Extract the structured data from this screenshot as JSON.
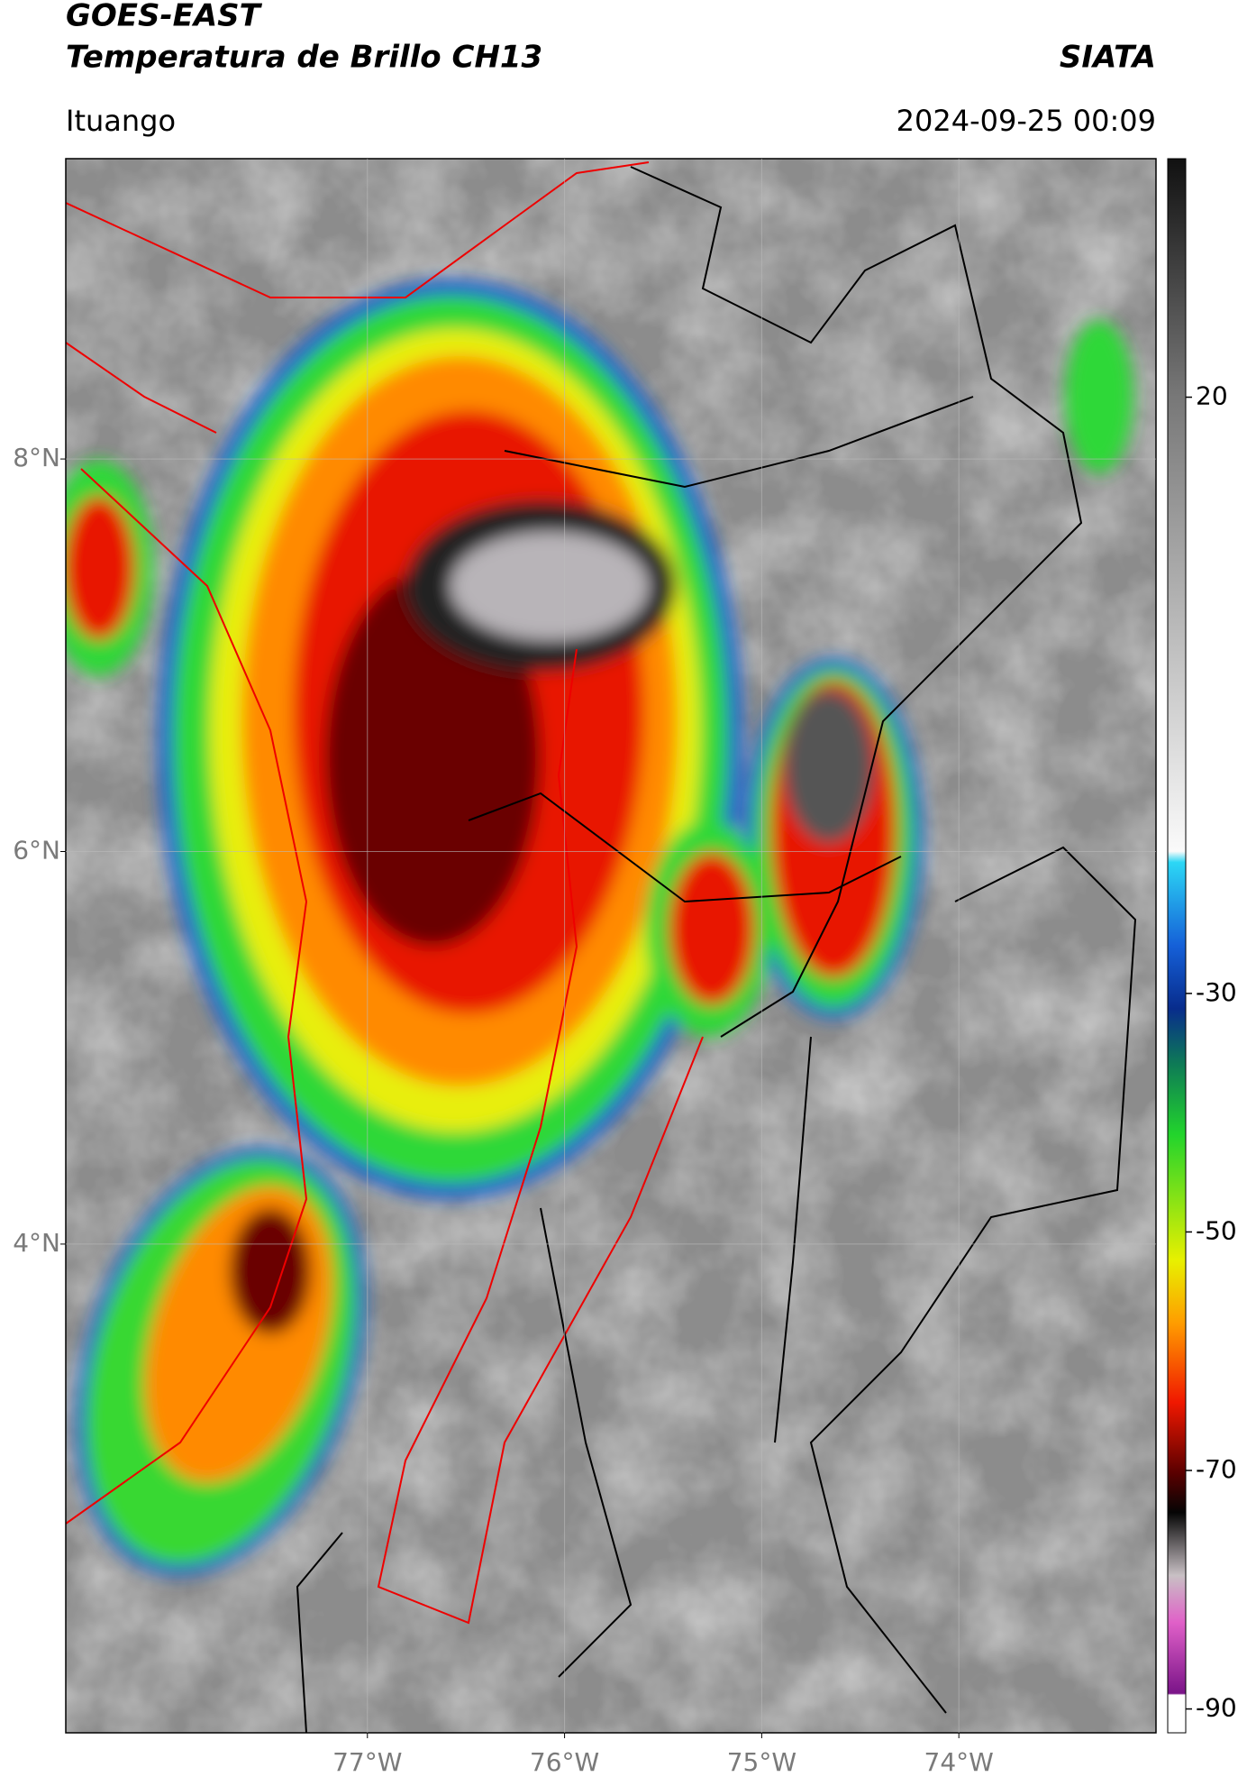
{
  "chart_data": {
    "type": "map",
    "title": "GOES-EAST",
    "subtitle": "Temperatura de Brillo CH13",
    "brand": "SIATA",
    "location": "Ituango",
    "datetime": "2024-09-25 00:09",
    "xlim": [
      -78.53,
      -73.0
    ],
    "ylim": [
      1.51,
      9.53
    ],
    "xticks": [
      {
        "value": -77,
        "label": "77°W"
      },
      {
        "value": -76,
        "label": "76°W"
      },
      {
        "value": -75,
        "label": "75°W"
      },
      {
        "value": -74,
        "label": "74°W"
      }
    ],
    "yticks": [
      {
        "value": 8,
        "label": "8°N"
      },
      {
        "value": 6,
        "label": "6°N"
      },
      {
        "value": 4,
        "label": "4°N"
      }
    ],
    "grid": true,
    "clim": [
      -92,
      40
    ],
    "cticks": [
      20,
      -30,
      -50,
      -70,
      -90
    ]
  }
}
